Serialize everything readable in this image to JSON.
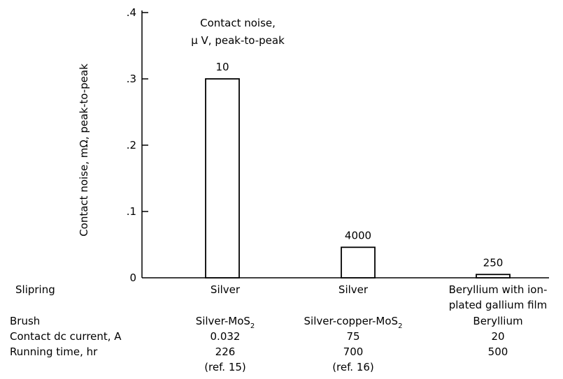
{
  "chart_data": {
    "type": "bar",
    "ylabel": "Contact noise, mΩ, peak-to-peak",
    "ylim": [
      0,
      0.4
    ],
    "yticks": [
      "0",
      ".1",
      ".2",
      ".3",
      ".4"
    ],
    "ytick_values": [
      0,
      0.1,
      0.2,
      0.3,
      0.4
    ],
    "annotation": [
      "Contact noise,",
      "μ V, peak-to-peak"
    ],
    "values": [
      0.3,
      0.046,
      0.005
    ],
    "bar_labels": [
      "10",
      "4000",
      "250"
    ],
    "categories": [
      {
        "slipring": [
          "Silver"
        ],
        "brush": "Silver-MoS",
        "brush_sub": "2",
        "current": "0.032",
        "time": "226",
        "ref": "(ref. 15)"
      },
      {
        "slipring": [
          "Silver"
        ],
        "brush": "Silver-copper-MoS",
        "brush_sub": "2",
        "current": "75",
        "time": "700",
        "ref": "(ref. 16)"
      },
      {
        "slipring": [
          "Beryllium with ion-",
          "plated gallium film"
        ],
        "brush": "Beryllium",
        "brush_sub": "",
        "current": "20",
        "time": "500",
        "ref": ""
      }
    ],
    "row_labels": {
      "slipring": "Slipring",
      "brush": "Brush",
      "current": "Contact dc current, A",
      "time": "Running time, hr"
    }
  }
}
